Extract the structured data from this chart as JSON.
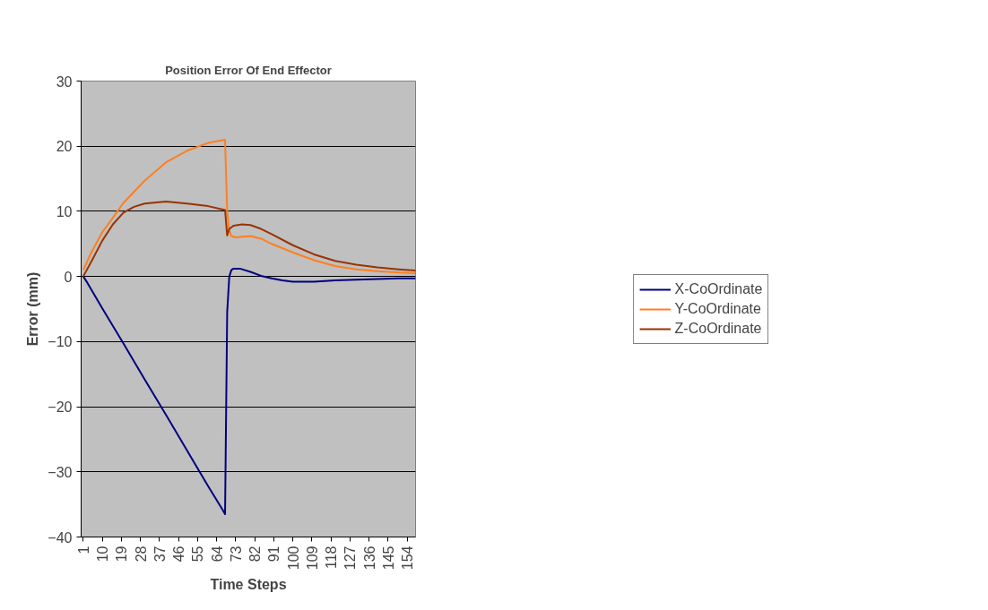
{
  "chart_data": {
    "type": "line",
    "title": "Position Error Of End Effector",
    "xlabel": "Time Steps",
    "ylabel": "Error (mm)",
    "xlim": [
      0,
      158
    ],
    "xticks": [
      1,
      10,
      19,
      28,
      37,
      46,
      55,
      64,
      73,
      82,
      91,
      100,
      109,
      118,
      127,
      136,
      145,
      154
    ],
    "ylim": [
      -40,
      30
    ],
    "yticks": [
      -40,
      -30,
      -20,
      -10,
      0,
      10,
      20,
      30
    ],
    "grid": "y",
    "legend": "right",
    "marker": "none",
    "line_style": "solid",
    "series": [
      {
        "name": "X-CoOrdinate",
        "color": "#000080",
        "x": [
          1,
          3,
          10,
          20,
          30,
          40,
          50,
          60,
          67,
          68,
          69,
          70,
          71,
          72,
          75,
          80,
          85,
          90,
          95,
          100,
          110,
          120,
          130,
          140,
          150,
          158
        ],
        "values": [
          0,
          -1,
          -4.9,
          -10.3,
          -15.8,
          -21.2,
          -26.7,
          -32.2,
          -35.9,
          -36.5,
          -5.5,
          0,
          1.0,
          1.2,
          1.2,
          0.7,
          0.1,
          -0.3,
          -0.6,
          -0.8,
          -0.8,
          -0.6,
          -0.5,
          -0.4,
          -0.3,
          -0.3
        ]
      },
      {
        "name": "Y-CoOrdinate",
        "color": "#ff7f1f",
        "x": [
          1,
          5,
          10,
          15,
          20,
          30,
          40,
          50,
          60,
          68,
          69,
          70,
          71,
          73,
          80,
          85,
          90,
          100,
          110,
          120,
          130,
          140,
          150,
          158
        ],
        "values": [
          1,
          3.8,
          6.8,
          9,
          11.3,
          14.7,
          17.5,
          19.3,
          20.5,
          21,
          10,
          7,
          6.2,
          6,
          6.2,
          5.8,
          5,
          3.7,
          2.5,
          1.6,
          1.1,
          0.8,
          0.6,
          0.5
        ]
      },
      {
        "name": "Z-CoOrdinate",
        "color": "#993300",
        "x": [
          1,
          5,
          10,
          15,
          20,
          25,
          30,
          40,
          50,
          60,
          68,
          69,
          70,
          72,
          76,
          80,
          85,
          90,
          100,
          110,
          120,
          130,
          140,
          150,
          158
        ],
        "values": [
          0,
          2.4,
          5.5,
          8,
          9.8,
          10.7,
          11.2,
          11.5,
          11.2,
          10.8,
          10.2,
          6.3,
          7.3,
          7.8,
          8,
          7.9,
          7.3,
          6.5,
          4.8,
          3.4,
          2.4,
          1.8,
          1.4,
          1.1,
          0.9
        ]
      }
    ]
  }
}
